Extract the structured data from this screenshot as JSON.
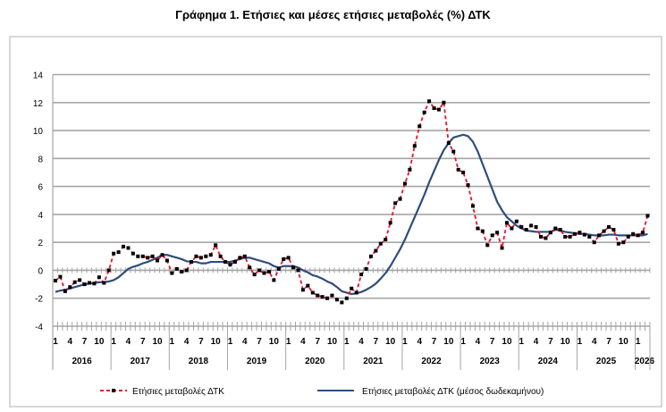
{
  "chart_data": {
    "type": "line",
    "title": "Γράφημα 1. Ετήσιες και μέσες ετήσιες μεταβολές (%) ΔΤΚ",
    "xlabel": "",
    "ylabel": "",
    "ylim": [
      -4,
      14
    ],
    "yticks": [
      "-4",
      "-2",
      "0",
      "2",
      "4",
      "6",
      "8",
      "10",
      "12",
      "14"
    ],
    "start": {
      "year": 2016,
      "month": 1
    },
    "month_tick_labels": [
      "1",
      "4",
      "7",
      "10"
    ],
    "years": [
      "2016",
      "2017",
      "2018",
      "2019",
      "2020",
      "2021",
      "2022",
      "2023",
      "2024",
      "2025",
      "2026"
    ],
    "grid": true,
    "legend_position": "bottom",
    "series": [
      {
        "name": "Ετήσιες μεταβολές ΔΤΚ",
        "color": "#e8132b",
        "style": "dashed-with-square-markers",
        "values": [
          -0.74,
          -0.46,
          -1.5,
          -1.2,
          -0.85,
          -0.7,
          -1.0,
          -0.9,
          -0.95,
          -0.5,
          -0.9,
          0.0,
          1.2,
          1.3,
          1.7,
          1.6,
          1.2,
          1.0,
          1.0,
          0.9,
          1.0,
          0.7,
          1.1,
          0.7,
          -0.2,
          0.1,
          -0.1,
          0.0,
          0.6,
          1.0,
          0.9,
          1.0,
          1.1,
          1.8,
          1.0,
          0.6,
          0.4,
          0.6,
          0.9,
          1.0,
          0.2,
          -0.3,
          0.0,
          -0.2,
          -0.1,
          -0.7,
          0.1,
          0.8,
          0.9,
          0.2,
          0.0,
          -1.4,
          -1.1,
          -1.6,
          -1.8,
          -1.9,
          -2.0,
          -1.8,
          -2.1,
          -2.3,
          -2.0,
          -1.3,
          -1.6,
          -0.3,
          0.1,
          1.0,
          1.4,
          1.9,
          2.2,
          3.4,
          4.8,
          5.1,
          6.2,
          7.2,
          8.9,
          10.3,
          11.3,
          12.1,
          11.6,
          11.5,
          12.0,
          9.1,
          8.5,
          7.2,
          7.0,
          6.1,
          4.6,
          3.0,
          2.8,
          1.8,
          2.5,
          2.7,
          1.6,
          3.4,
          3.0,
          3.5,
          3.1,
          2.9,
          3.2,
          3.1,
          2.4,
          2.3,
          2.7,
          3.0,
          2.9,
          2.4,
          2.4,
          2.6,
          2.7,
          2.55,
          2.4,
          2.0,
          2.5,
          2.8,
          3.1,
          2.9,
          1.9,
          2.0,
          2.4,
          2.6,
          2.5,
          2.7,
          3.9
        ]
      },
      {
        "name": "Ετήσιες μεταβολές ΔΤΚ (μέσος δωδεκαμήνου)",
        "color": "#2e4d7b",
        "style": "solid",
        "values": [
          -1.55,
          -1.45,
          -1.4,
          -1.3,
          -1.2,
          -1.1,
          -1.0,
          -0.95,
          -0.9,
          -0.85,
          -0.85,
          -0.8,
          -0.7,
          -0.5,
          -0.2,
          0.1,
          0.25,
          0.35,
          0.5,
          0.6,
          0.75,
          0.9,
          1.1,
          1.1,
          1.0,
          0.9,
          0.8,
          0.65,
          0.6,
          0.6,
          0.5,
          0.5,
          0.6,
          0.6,
          0.6,
          0.6,
          0.6,
          0.7,
          0.8,
          0.9,
          0.9,
          0.8,
          0.7,
          0.6,
          0.5,
          0.3,
          0.2,
          0.3,
          0.3,
          0.3,
          0.2,
          0.0,
          -0.15,
          -0.35,
          -0.45,
          -0.6,
          -0.8,
          -0.95,
          -1.2,
          -1.5,
          -1.6,
          -1.7,
          -1.65,
          -1.55,
          -1.4,
          -1.2,
          -0.95,
          -0.6,
          -0.2,
          0.3,
          0.9,
          1.5,
          2.2,
          3.0,
          3.8,
          4.6,
          5.4,
          6.3,
          7.1,
          7.9,
          8.6,
          9.1,
          9.5,
          9.6,
          9.7,
          9.6,
          9.2,
          8.5,
          7.6,
          6.7,
          5.8,
          4.9,
          4.3,
          3.8,
          3.5,
          3.2,
          3.0,
          2.85,
          2.8,
          2.75,
          2.75,
          2.75,
          2.75,
          2.9,
          2.85,
          2.75,
          2.7,
          2.65,
          2.6,
          2.6,
          2.55,
          2.5,
          2.5,
          2.5,
          2.55,
          2.55,
          2.5,
          2.5,
          2.5,
          2.5,
          2.5,
          2.5,
          2.6
        ]
      }
    ]
  }
}
